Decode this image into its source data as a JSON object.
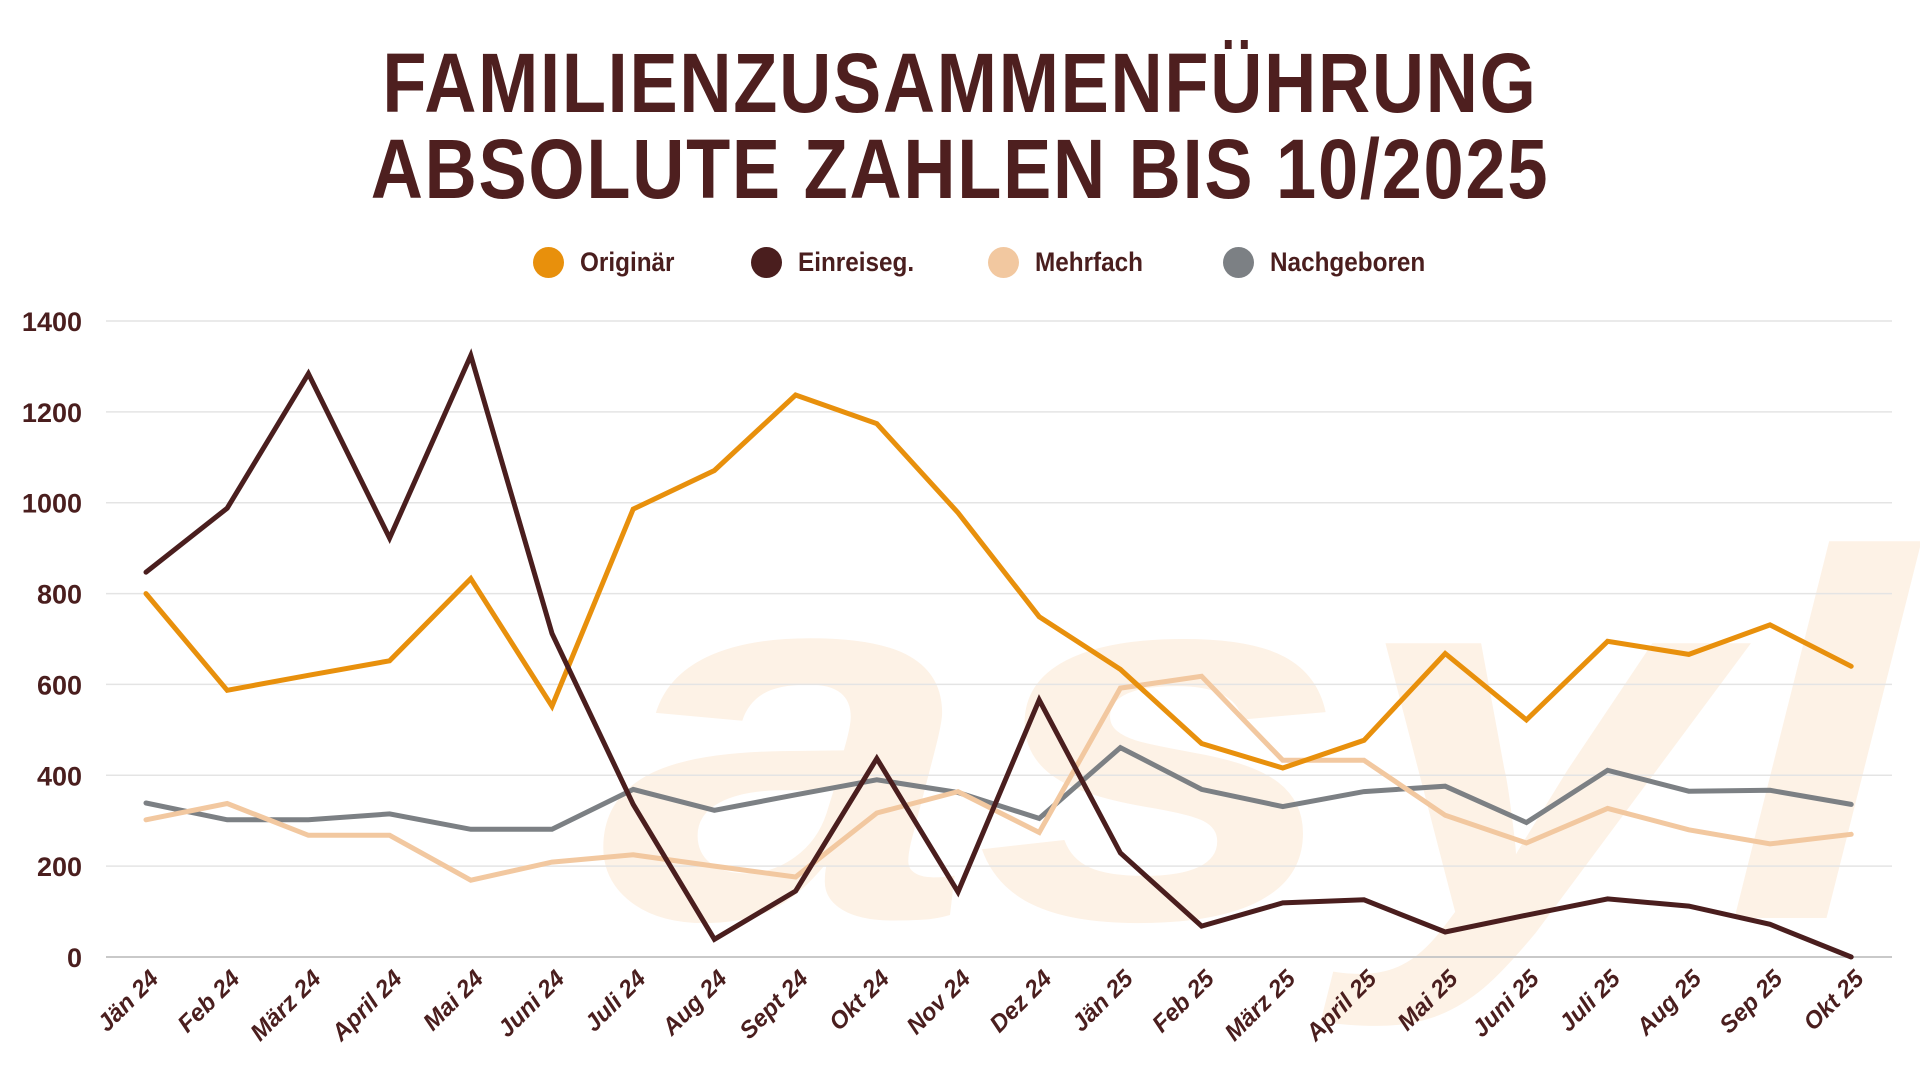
{
  "header": {
    "title_line1": "FAMILIENZUSAMMENFÜHRUNG",
    "title_line2": "ABSOLUTE ZAHLEN BIS 10/2025"
  },
  "watermark": "asyl",
  "legend": [
    {
      "label": "Originär",
      "color": "#e8900c"
    },
    {
      "label": "Einreiseg.",
      "color": "#4a1e1e"
    },
    {
      "label": "Mehrfach",
      "color": "#f2c8a0"
    },
    {
      "label": "Nachgeboren",
      "color": "#7c8084"
    }
  ],
  "chart_data": {
    "type": "line",
    "title": "FAMILIENZUSAMMENFÜHRUNG ABSOLUTE ZAHLEN BIS 10/2025",
    "xlabel": "",
    "ylabel": "",
    "ylim": [
      0,
      1400
    ],
    "yticks": [
      0,
      200,
      400,
      600,
      800,
      1000,
      1200,
      1400
    ],
    "grid": true,
    "legend_position": "top",
    "categories": [
      "Jän 24",
      "Feb 24",
      "März 24",
      "April 24",
      "Mai 24",
      "Juni 24",
      "Juli 24",
      "Aug 24",
      "Sept 24",
      "Okt 24",
      "Nov 24",
      "Dez 24",
      "Jän 25",
      "Feb 25",
      "März 25",
      "April 25",
      "Mai 25",
      "Juni 25",
      "Juli 25",
      "Aug 25",
      "Sep 25",
      "Okt 25"
    ],
    "series": [
      {
        "name": "Originär",
        "color": "#e8900c",
        "values": [
          800,
          587,
          620,
          652,
          833,
          552,
          986,
          1071,
          1237,
          1174,
          978,
          749,
          633,
          470,
          416,
          477,
          668,
          522,
          695,
          666,
          731,
          640
        ]
      },
      {
        "name": "Einreiseg.",
        "color": "#4a1e1e",
        "values": [
          847,
          988,
          1284,
          922,
          1324,
          712,
          336,
          39,
          145,
          437,
          143,
          566,
          229,
          68,
          119,
          126,
          55,
          92,
          128,
          112,
          72,
          0
        ]
      },
      {
        "name": "Mehrfach",
        "color": "#f2c8a0",
        "values": [
          302,
          338,
          268,
          268,
          169,
          209,
          225,
          200,
          176,
          317,
          364,
          274,
          592,
          618,
          433,
          433,
          312,
          251,
          327,
          280,
          249,
          270
        ]
      },
      {
        "name": "Nachgeboren",
        "color": "#7c8084",
        "values": [
          339,
          302,
          302,
          315,
          281,
          281,
          369,
          323,
          357,
          390,
          362,
          305,
          461,
          369,
          331,
          364,
          376,
          296,
          411,
          365,
          367,
          336
        ]
      }
    ]
  }
}
